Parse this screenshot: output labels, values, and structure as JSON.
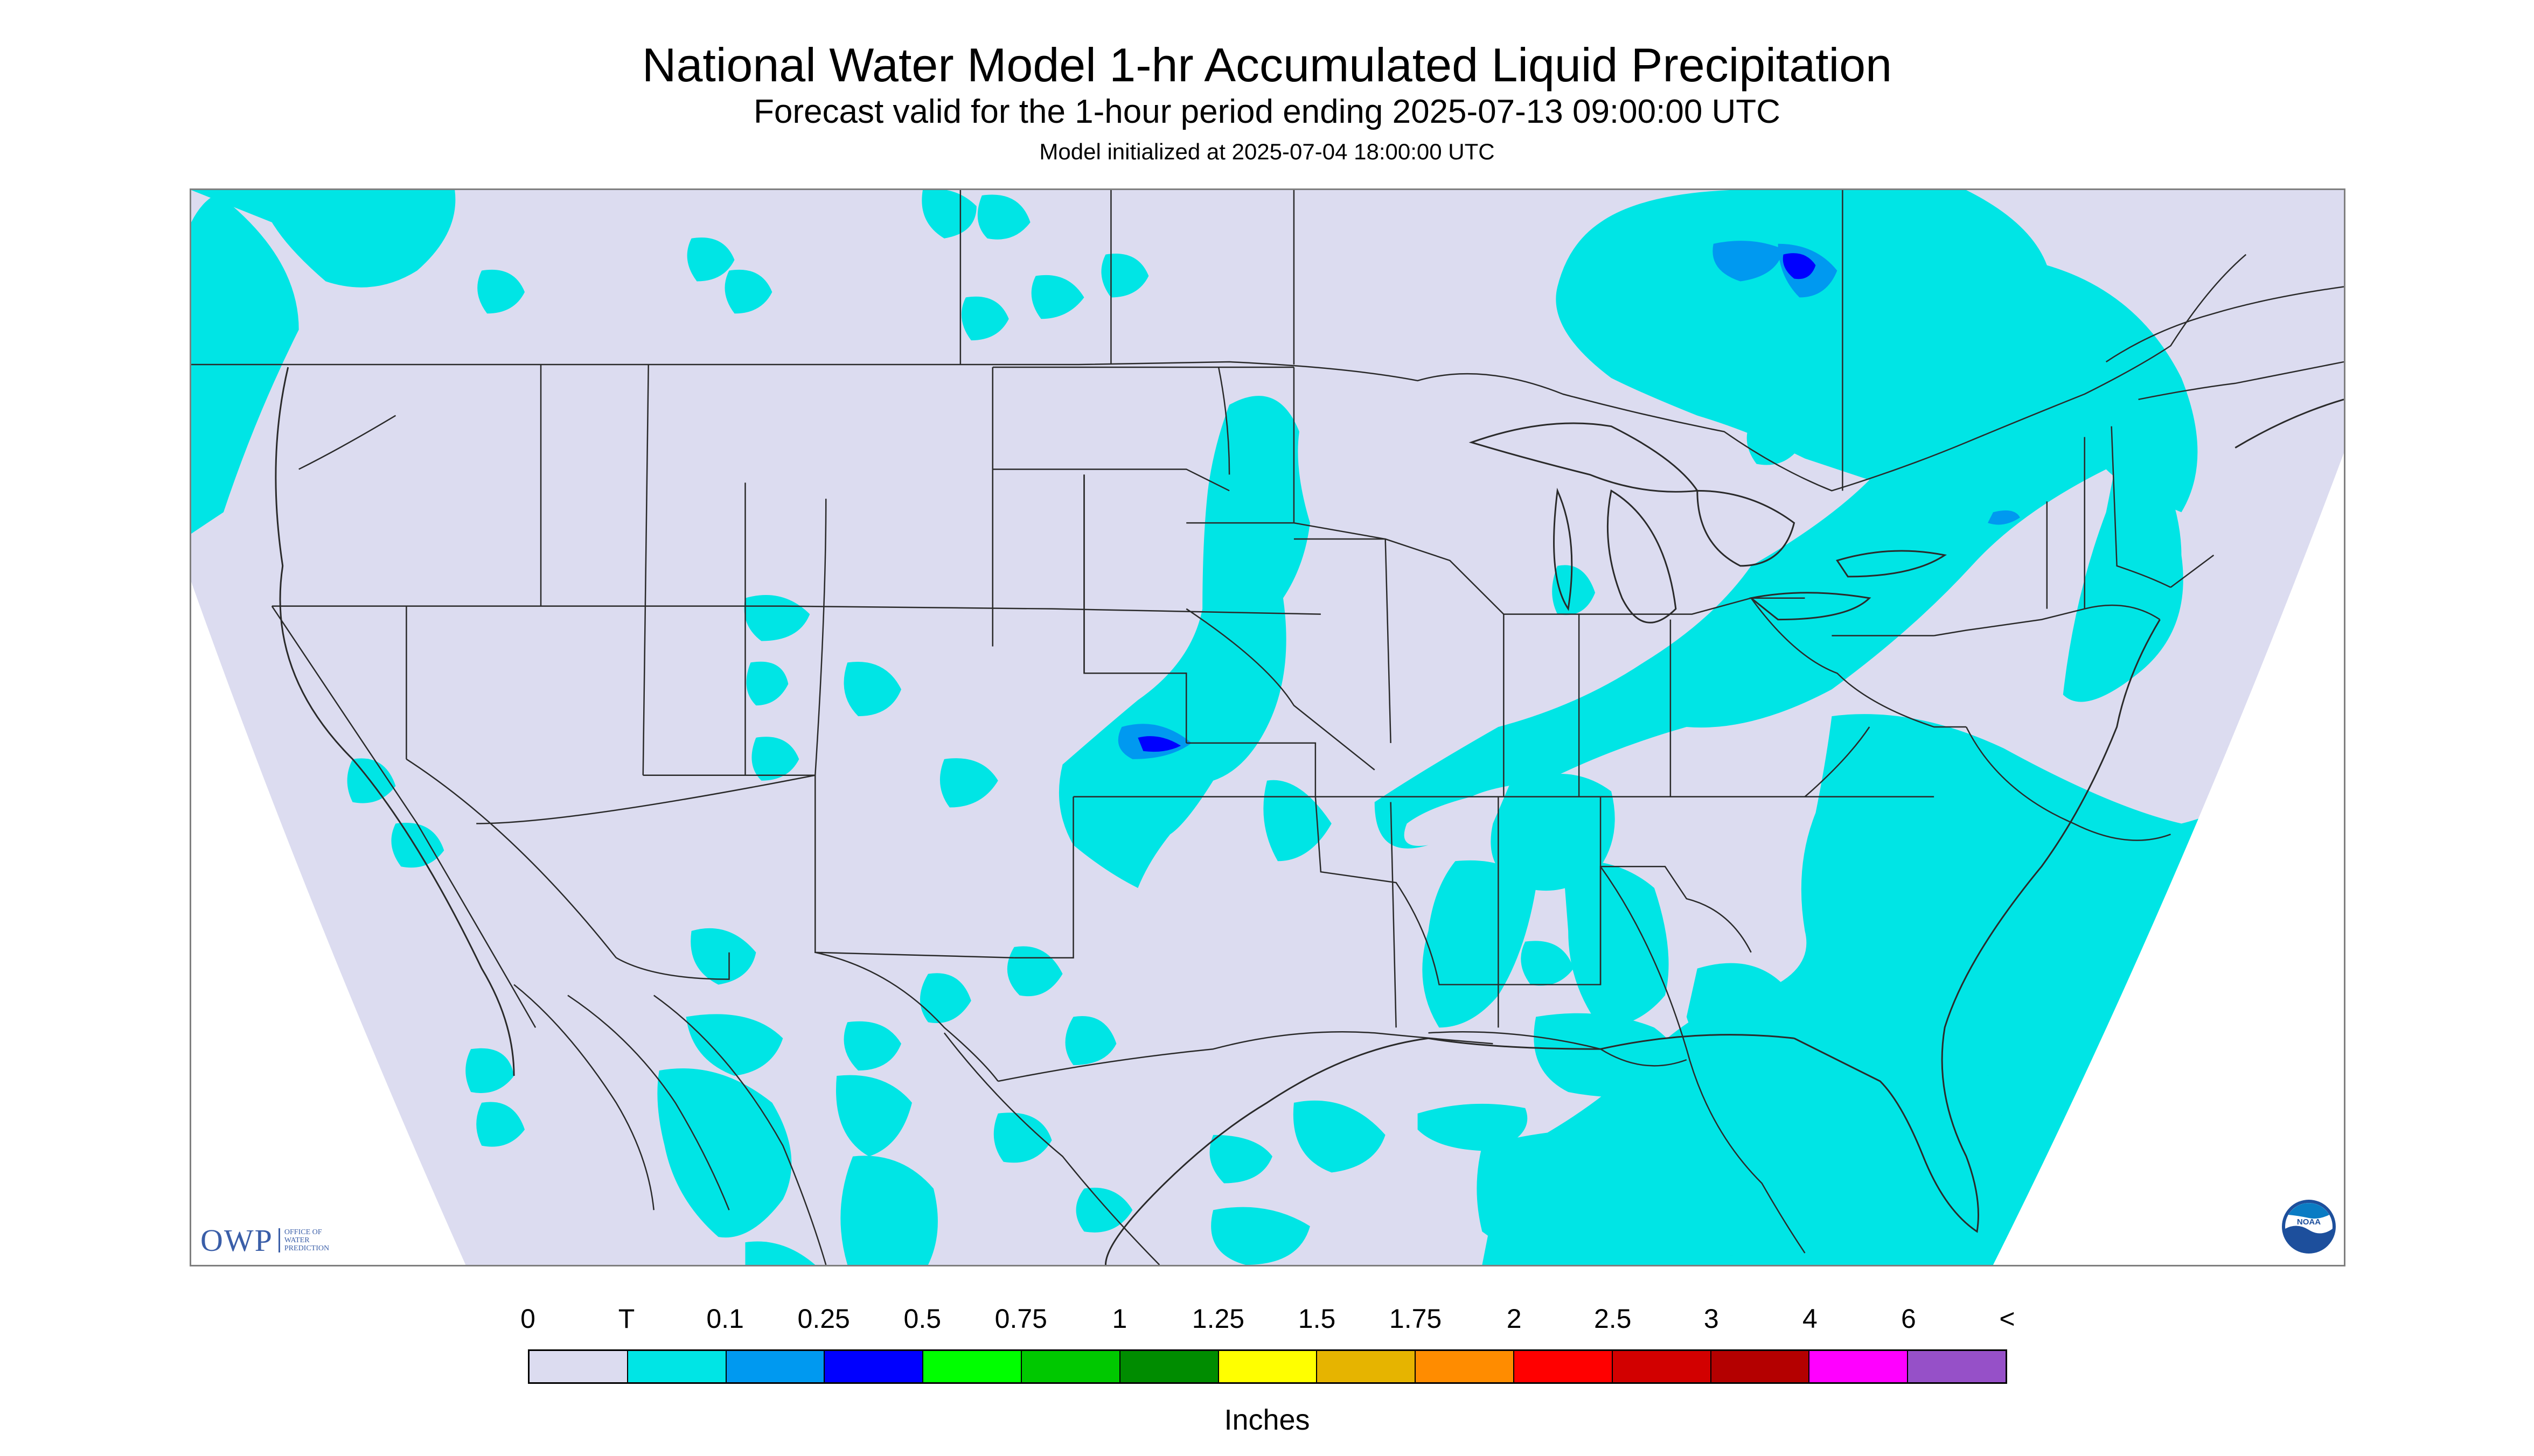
{
  "header": {
    "title": "National Water Model 1-hr Accumulated Liquid Precipitation",
    "subtitle": "Forecast valid for the 1-hour period ending 2025-07-13 09:00:00 UTC",
    "init_line": "Model initialized at 2025-07-04 18:00:00 UTC"
  },
  "logos": {
    "owp_mark": "OWP",
    "owp_line1": "OFFICE OF",
    "owp_line2": "WATER",
    "owp_line3": "PREDICTION",
    "noaa_text": "NOAA"
  },
  "legend": {
    "ticks": [
      "0",
      "T",
      "0.1",
      "0.25",
      "0.5",
      "0.75",
      "1",
      "1.25",
      "1.5",
      "1.75",
      "2",
      "2.5",
      "3",
      "4",
      "6",
      "<"
    ],
    "colors": [
      "#dcdcf0",
      "#00e5e5",
      "#0099f0",
      "#0000ff",
      "#00ff00",
      "#00c800",
      "#008c00",
      "#ffff00",
      "#e6b400",
      "#ff8c00",
      "#ff0000",
      "#d20000",
      "#b40000",
      "#ff00ff",
      "#9650c8"
    ],
    "units": "Inches"
  },
  "map_colors": {
    "no_data": "#ffffff",
    "zero": "#dcdcf0",
    "trace": "#00e5e5",
    "light": "#0099f0",
    "moderate": "#0000ff",
    "boundary": "#2a2a2a"
  }
}
